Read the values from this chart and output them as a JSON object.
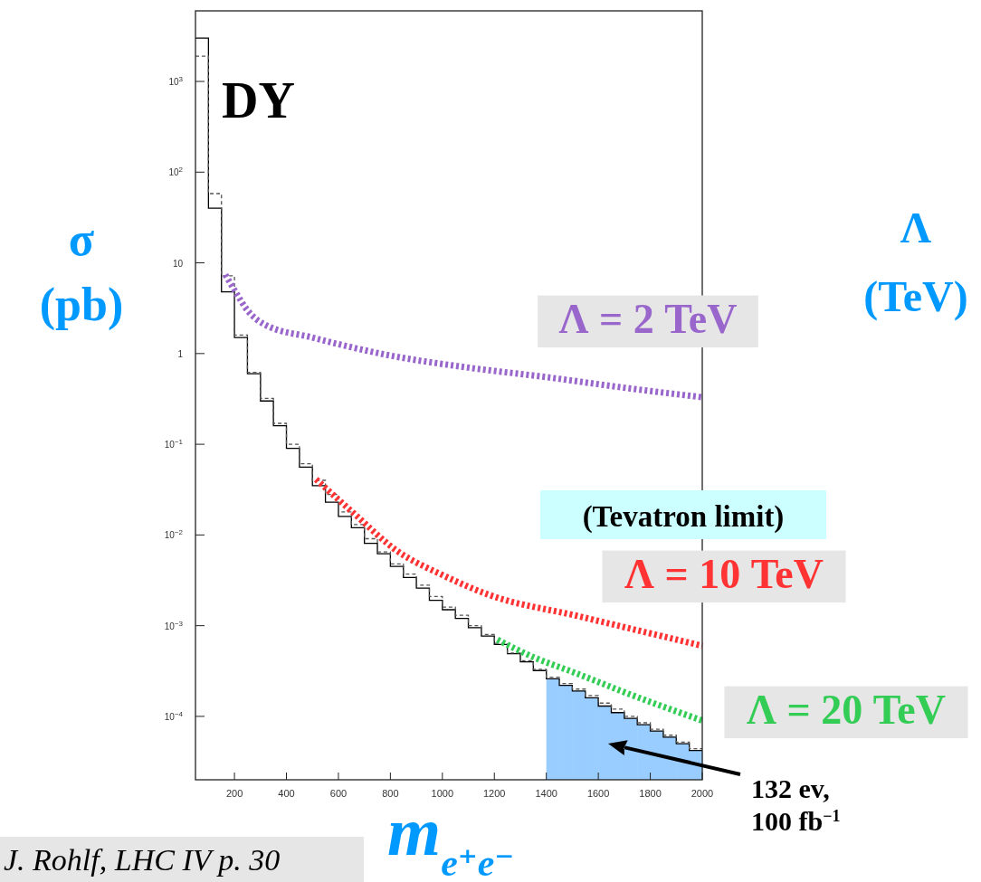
{
  "chart_data": {
    "type": "histogram",
    "xlabel": "m$_{e⁺e⁻}$",
    "ylabel": "σ (pb)",
    "xlim": [
      50,
      2000
    ],
    "xticks": [
      200,
      400,
      600,
      800,
      1000,
      1200,
      1400,
      1600,
      1800,
      2000
    ],
    "ylim": [
      2e-05,
      6000
    ],
    "yticks": [
      {
        "value": 0.0001,
        "label": "10$^{−4}$"
      },
      {
        "value": 0.001,
        "label": "10$^{−3}$"
      },
      {
        "value": 0.01,
        "label": "10$^{−2}$"
      },
      {
        "value": 0.1,
        "label": "10$^{−1}$"
      },
      1,
      10,
      {
        "value": 100,
        "label": "10$^{2}$"
      },
      {
        "value": 1000,
        "label": "10$^{3}$"
      }
    ],
    "log": "y",
    "bins": [
      50,
      100,
      150,
      200,
      250,
      300,
      350,
      400,
      450,
      500,
      550,
      600,
      650,
      700,
      750,
      800,
      850,
      900,
      950,
      1000,
      1050,
      1100,
      1150,
      1200,
      1250,
      1300,
      1350,
      1400,
      1450,
      1500,
      1550,
      1600,
      1650,
      1700,
      1750,
      1800,
      1850,
      1900,
      1950,
      2000
    ],
    "grid": false,
    "series": [
      {
        "color": "#99ccff",
        "bins": [
          1400,
          1450,
          1500,
          1550,
          1600,
          1650,
          1700,
          1750,
          1800,
          1850,
          1900,
          1950,
          2000
        ],
        "values": [
          0.00026,
          0.00022,
          0.00019,
          0.00016,
          0.00013,
          0.00011,
          9.5e-05,
          8.1e-05,
          6.9e-05,
          5.9e-05,
          5e-05,
          4.2e-05
        ]
      },
      {
        "name": "DY",
        "type": "histogram",
        "color": "#000000",
        "line_style": "solid",
        "values": [
          3000,
          40,
          4.8,
          1.5,
          0.6,
          0.3,
          0.16,
          0.09,
          0.056,
          0.035,
          0.023,
          0.016,
          0.012,
          0.0081,
          0.0062,
          0.0045,
          0.0034,
          0.0026,
          0.0019,
          0.0015,
          0.0012,
          0.00095,
          0.00077,
          0.00062,
          0.00049,
          0.0004,
          0.00032,
          0.00026,
          0.00022,
          0.00019,
          0.00016,
          0.00013,
          0.00011,
          9.5e-05,
          8.1e-05,
          6.9e-05,
          5.9e-05,
          5e-05,
          4.2e-05
        ]
      },
      {
        "type": "histogram",
        "color": "#555555",
        "line_style": "dashed",
        "values": [
          1900,
          58,
          7.2,
          1.6,
          0.62,
          0.32,
          0.17,
          0.1,
          0.061,
          0.04,
          0.028,
          0.018,
          0.013,
          0.0091,
          0.0065,
          0.0048,
          0.0037,
          0.0028,
          0.0021,
          0.0016,
          0.0013,
          0.001,
          0.0008,
          0.00064,
          0.0005,
          0.00041,
          0.00033,
          0.00027,
          0.00023,
          0.0002,
          0.00017,
          0.00014,
          0.00012,
          0.0001,
          8.5e-05,
          7.2e-05,
          6.2e-05,
          5.2e-05,
          4.4e-05
        ]
      },
      {
        "name": "Λ = 2 TeV",
        "type": "line",
        "color": "#9966cc",
        "line_style": "dashed",
        "x": [
          165,
          200,
          250,
          315,
          500,
          800,
          1100,
          1400,
          1700,
          2000
        ],
        "values": [
          7.4,
          5,
          3,
          2.1,
          1.5,
          0.95,
          0.7,
          0.55,
          0.42,
          0.33
        ]
      },
      {
        "name": "Λ = 10 TeV",
        "type": "line",
        "color": "#ff3333",
        "line_style": "dashed",
        "x": [
          514,
          653,
          828,
          1002,
          1177,
          1525,
          2000
        ],
        "values": [
          0.041,
          0.018,
          0.0066,
          0.0036,
          0.0022,
          0.00127,
          0.0006
        ]
      },
      {
        "name": "Λ = 20 TeV",
        "type": "line",
        "color": "#33cc55",
        "line_style": "dashed",
        "x": [
          1212,
          1350,
          1500,
          1733,
          2000
        ],
        "values": [
          0.0007,
          0.00045,
          0.00031,
          0.00017,
          9e-05
        ]
      }
    ],
    "annotations": [
      "(Tevatron limit)",
      "132 ev, 100 fb$^{−1}$",
      "Λ (TeV)",
      "J. Rohlf, LHC IV p. 30"
    ]
  }
}
